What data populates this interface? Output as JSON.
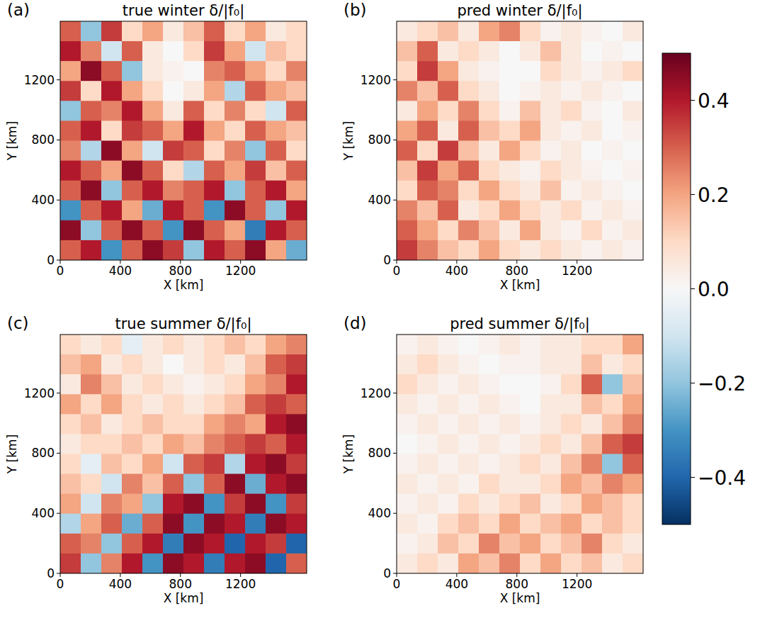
{
  "chart_data": [
    {
      "type": "heatmap",
      "panel": "(a)",
      "title": "true winter δ/|f₀|",
      "xlabel": "X [km]",
      "ylabel": "Y [km]",
      "xlim": [
        0,
        1640
      ],
      "ylim": [
        0,
        1590
      ],
      "xticks": [
        0,
        400,
        800,
        1200
      ],
      "yticks": [
        0,
        400,
        800,
        1200
      ],
      "cells": [
        [
          0.3,
          -0.2,
          0.35,
          0.1,
          0.2,
          0.05,
          0.15,
          0.3,
          0.1,
          0.2,
          0.05,
          0.1
        ],
        [
          0.4,
          0.25,
          -0.1,
          0.3,
          0.05,
          0.0,
          0.1,
          0.35,
          0.2,
          -0.1,
          0.15,
          0.1
        ],
        [
          0.2,
          0.45,
          0.3,
          -0.2,
          0.05,
          0.02,
          0.0,
          0.25,
          0.3,
          0.2,
          0.1,
          0.25
        ],
        [
          0.35,
          0.1,
          0.4,
          0.2,
          0.1,
          0.0,
          0.05,
          0.2,
          -0.15,
          0.3,
          0.2,
          0.15
        ],
        [
          -0.2,
          0.3,
          0.25,
          0.4,
          0.2,
          0.05,
          0.3,
          0.1,
          0.25,
          0.1,
          -0.1,
          0.3
        ],
        [
          0.3,
          0.4,
          0.1,
          0.35,
          0.3,
          0.2,
          0.4,
          0.2,
          0.1,
          0.3,
          0.2,
          0.15
        ],
        [
          0.25,
          -0.15,
          0.45,
          0.2,
          -0.1,
          0.35,
          0.3,
          0.1,
          0.25,
          -0.2,
          0.3,
          0.1
        ],
        [
          0.4,
          0.3,
          0.2,
          0.45,
          0.3,
          0.1,
          -0.15,
          0.3,
          0.2,
          0.35,
          0.15,
          0.3
        ],
        [
          0.3,
          0.45,
          -0.2,
          0.3,
          0.4,
          0.25,
          0.3,
          0.4,
          -0.2,
          0.3,
          0.4,
          0.2
        ],
        [
          -0.3,
          0.3,
          0.4,
          0.2,
          -0.25,
          0.4,
          0.3,
          -0.3,
          0.45,
          0.3,
          -0.2,
          0.4
        ],
        [
          0.45,
          -0.2,
          0.3,
          0.45,
          0.3,
          -0.3,
          0.45,
          0.3,
          0.2,
          -0.35,
          0.4,
          0.3
        ],
        [
          0.3,
          0.4,
          -0.3,
          0.3,
          0.45,
          0.35,
          -0.2,
          0.4,
          0.3,
          0.45,
          0.2,
          -0.25
        ]
      ]
    },
    {
      "type": "heatmap",
      "panel": "(b)",
      "title": "pred winter δ/|f₀|",
      "xlabel": "X [km]",
      "ylabel": "Y [km]",
      "xlim": [
        0,
        1640
      ],
      "ylim": [
        0,
        1590
      ],
      "xticks": [
        0,
        400,
        800,
        1200
      ],
      "yticks": [
        0,
        400,
        800,
        1200
      ],
      "cells": [
        [
          0.05,
          0.1,
          0.15,
          0.05,
          0.2,
          0.25,
          0.1,
          0.02,
          0.05,
          0.02,
          0.0,
          0.05
        ],
        [
          0.15,
          0.3,
          0.05,
          0.1,
          0.05,
          0.0,
          0.05,
          0.15,
          0.05,
          0.0,
          0.02,
          0.0
        ],
        [
          0.1,
          0.35,
          0.2,
          0.05,
          0.02,
          0.0,
          0.0,
          0.1,
          0.05,
          0.02,
          0.05,
          0.1
        ],
        [
          0.25,
          0.15,
          0.3,
          0.1,
          0.05,
          0.0,
          0.02,
          0.05,
          0.02,
          0.05,
          0.02,
          0.0
        ],
        [
          0.05,
          0.2,
          0.1,
          0.25,
          0.1,
          0.02,
          0.15,
          0.05,
          0.1,
          0.02,
          0.0,
          0.05
        ],
        [
          0.2,
          0.3,
          0.05,
          0.3,
          0.15,
          0.1,
          0.2,
          0.05,
          0.02,
          0.05,
          0.0,
          0.02
        ],
        [
          0.3,
          0.1,
          0.35,
          0.15,
          0.05,
          0.2,
          0.1,
          0.02,
          0.05,
          0.0,
          0.02,
          0.0
        ],
        [
          0.15,
          0.35,
          0.2,
          0.3,
          0.1,
          0.05,
          0.02,
          0.1,
          0.05,
          0.02,
          0.0,
          0.02
        ],
        [
          0.1,
          0.3,
          0.25,
          0.1,
          0.2,
          0.1,
          0.05,
          0.15,
          0.02,
          0.05,
          0.02,
          0.0
        ],
        [
          0.25,
          0.15,
          0.3,
          0.05,
          0.1,
          0.2,
          0.1,
          0.05,
          0.1,
          0.02,
          0.05,
          0.02
        ],
        [
          0.3,
          0.2,
          0.1,
          0.25,
          0.15,
          0.05,
          0.2,
          0.05,
          0.02,
          0.1,
          0.02,
          0.05
        ],
        [
          0.35,
          0.25,
          0.15,
          0.1,
          0.2,
          0.1,
          0.05,
          0.1,
          0.05,
          0.02,
          0.05,
          0.02
        ]
      ]
    },
    {
      "type": "heatmap",
      "panel": "(c)",
      "title": "true summer δ/|f₀|",
      "xlabel": "X [km]",
      "ylabel": "Y [km]",
      "xlim": [
        0,
        1640
      ],
      "ylim": [
        0,
        1590
      ],
      "xticks": [
        0,
        400,
        800,
        1200
      ],
      "yticks": [
        0,
        400,
        800,
        1200
      ],
      "cells": [
        [
          0.1,
          0.05,
          0.1,
          -0.05,
          0.05,
          0.1,
          0.05,
          0.1,
          0.15,
          0.1,
          0.2,
          0.25
        ],
        [
          0.15,
          0.2,
          0.05,
          0.1,
          0.05,
          0.0,
          0.05,
          0.1,
          0.05,
          0.15,
          0.3,
          0.35
        ],
        [
          0.05,
          0.25,
          0.15,
          0.05,
          0.1,
          0.05,
          0.02,
          0.05,
          0.1,
          0.2,
          0.25,
          0.4
        ],
        [
          0.2,
          0.1,
          0.2,
          0.1,
          0.05,
          0.1,
          0.05,
          0.1,
          0.15,
          0.3,
          0.35,
          0.3
        ],
        [
          0.1,
          0.15,
          0.05,
          0.1,
          0.15,
          0.1,
          0.1,
          0.2,
          0.25,
          0.2,
          0.4,
          0.45
        ],
        [
          0.05,
          0.1,
          0.1,
          0.15,
          0.1,
          0.2,
          0.15,
          0.25,
          0.3,
          0.35,
          0.3,
          0.4
        ],
        [
          0.1,
          -0.05,
          0.15,
          0.1,
          0.2,
          -0.1,
          0.3,
          0.35,
          -0.15,
          0.4,
          0.45,
          0.35
        ],
        [
          0.15,
          0.1,
          -0.1,
          0.25,
          0.15,
          0.3,
          -0.2,
          0.3,
          0.45,
          -0.25,
          0.4,
          0.45
        ],
        [
          0.2,
          -0.1,
          0.25,
          0.2,
          -0.2,
          0.4,
          0.45,
          -0.3,
          0.35,
          0.45,
          -0.3,
          0.35
        ],
        [
          -0.15,
          0.2,
          0.3,
          -0.25,
          0.3,
          0.45,
          -0.3,
          0.45,
          0.4,
          -0.35,
          0.45,
          0.4
        ],
        [
          0.3,
          0.25,
          -0.2,
          0.3,
          0.4,
          -0.35,
          0.45,
          0.4,
          -0.4,
          0.4,
          0.35,
          -0.4
        ],
        [
          0.35,
          -0.2,
          0.25,
          0.4,
          -0.3,
          0.45,
          0.4,
          -0.35,
          0.4,
          0.45,
          -0.4,
          0.3
        ]
      ]
    },
    {
      "type": "heatmap",
      "panel": "(d)",
      "title": "pred summer δ/|f₀|",
      "xlabel": "X [km]",
      "ylabel": "Y [km]",
      "xlim": [
        0,
        1640
      ],
      "ylim": [
        0,
        1590
      ],
      "xticks": [
        0,
        400,
        800,
        1200
      ],
      "yticks": [
        0,
        400,
        800,
        1200
      ],
      "cells": [
        [
          0.02,
          0.05,
          0.02,
          0.0,
          0.02,
          0.05,
          0.02,
          0.05,
          0.05,
          0.1,
          0.1,
          0.2
        ],
        [
          0.05,
          0.1,
          0.05,
          0.02,
          0.0,
          0.02,
          0.02,
          0.05,
          0.05,
          0.15,
          0.05,
          0.1
        ],
        [
          0.1,
          0.05,
          0.02,
          0.05,
          0.02,
          0.0,
          0.0,
          0.02,
          0.1,
          0.3,
          -0.2,
          0.15
        ],
        [
          0.05,
          0.02,
          0.05,
          0.02,
          0.05,
          0.02,
          0.0,
          0.05,
          0.05,
          0.15,
          0.1,
          0.2
        ],
        [
          0.02,
          0.05,
          0.02,
          0.05,
          0.02,
          0.05,
          0.02,
          0.05,
          0.1,
          0.05,
          0.15,
          0.25
        ],
        [
          0.0,
          0.02,
          0.05,
          0.02,
          0.05,
          0.02,
          0.05,
          0.1,
          0.05,
          0.15,
          0.3,
          0.35
        ],
        [
          0.02,
          0.05,
          0.02,
          0.05,
          0.02,
          0.05,
          0.1,
          0.05,
          0.15,
          0.25,
          -0.2,
          0.3
        ],
        [
          0.05,
          0.02,
          0.05,
          0.02,
          0.1,
          0.05,
          0.05,
          0.1,
          0.2,
          0.15,
          0.25,
          0.2
        ],
        [
          0.02,
          0.05,
          0.02,
          0.1,
          0.05,
          0.1,
          0.15,
          0.05,
          0.1,
          0.2,
          0.15,
          0.1
        ],
        [
          0.05,
          0.02,
          0.1,
          0.15,
          0.1,
          0.2,
          0.1,
          0.15,
          0.2,
          0.1,
          0.15,
          0.1
        ],
        [
          0.02,
          0.05,
          0.15,
          0.1,
          0.25,
          0.15,
          0.2,
          0.1,
          0.15,
          0.25,
          0.1,
          0.05
        ],
        [
          0.05,
          0.1,
          0.05,
          0.2,
          0.15,
          0.25,
          0.1,
          0.2,
          0.1,
          0.15,
          0.05,
          0.1
        ]
      ]
    }
  ],
  "colorbar": {
    "range": [
      -0.5,
      0.5
    ],
    "ticks": [
      {
        "value": -0.4,
        "label": "−0.4"
      },
      {
        "value": -0.2,
        "label": "−0.2"
      },
      {
        "value": 0,
        "label": "0.0"
      },
      0.2,
      0.4
    ]
  }
}
